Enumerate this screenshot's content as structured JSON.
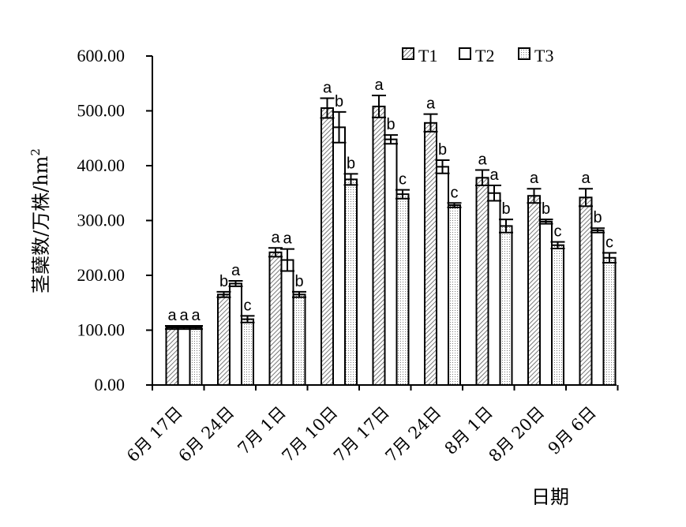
{
  "chart_data": {
    "type": "bar",
    "ylabel": "茎蘖数/万株/hm",
    "ylabel_sup": "2",
    "xlabel": "日期",
    "ylim": [
      0,
      600
    ],
    "yticks": [
      "0.00",
      "100.00",
      "200.00",
      "300.00",
      "400.00",
      "500.00",
      "600.00"
    ],
    "categories": [
      "6月 17日",
      "6月 24日",
      "7月 1日",
      "7月 10日",
      "7月 17日",
      "7月 24日",
      "8月 1日",
      "8月 20日",
      "9月 6日"
    ],
    "legend_position": "top-right",
    "series": [
      {
        "name": "T1",
        "pattern": "diagonal-hatch",
        "values": [
          105,
          165,
          242,
          505,
          508,
          478,
          378,
          345,
          342
        ],
        "errors": [
          3,
          5,
          8,
          18,
          20,
          16,
          14,
          13,
          16
        ],
        "letters": [
          "a",
          "b",
          "a",
          "a",
          "a",
          "a",
          "a",
          "a",
          "a"
        ]
      },
      {
        "name": "T2",
        "pattern": "blank",
        "values": [
          105,
          185,
          228,
          470,
          448,
          398,
          350,
          298,
          282
        ],
        "errors": [
          3,
          5,
          20,
          28,
          8,
          12,
          14,
          4,
          4
        ],
        "letters": [
          "a",
          "a",
          "a",
          "b",
          "b",
          "b",
          "a",
          "b",
          "b"
        ]
      },
      {
        "name": "T3",
        "pattern": "dots",
        "values": [
          105,
          120,
          165,
          375,
          348,
          328,
          290,
          255,
          232
        ],
        "errors": [
          3,
          6,
          5,
          10,
          8,
          4,
          12,
          6,
          9
        ],
        "letters": [
          "a",
          "c",
          "b",
          "b",
          "c",
          "c",
          "b",
          "c",
          "c"
        ]
      }
    ]
  }
}
